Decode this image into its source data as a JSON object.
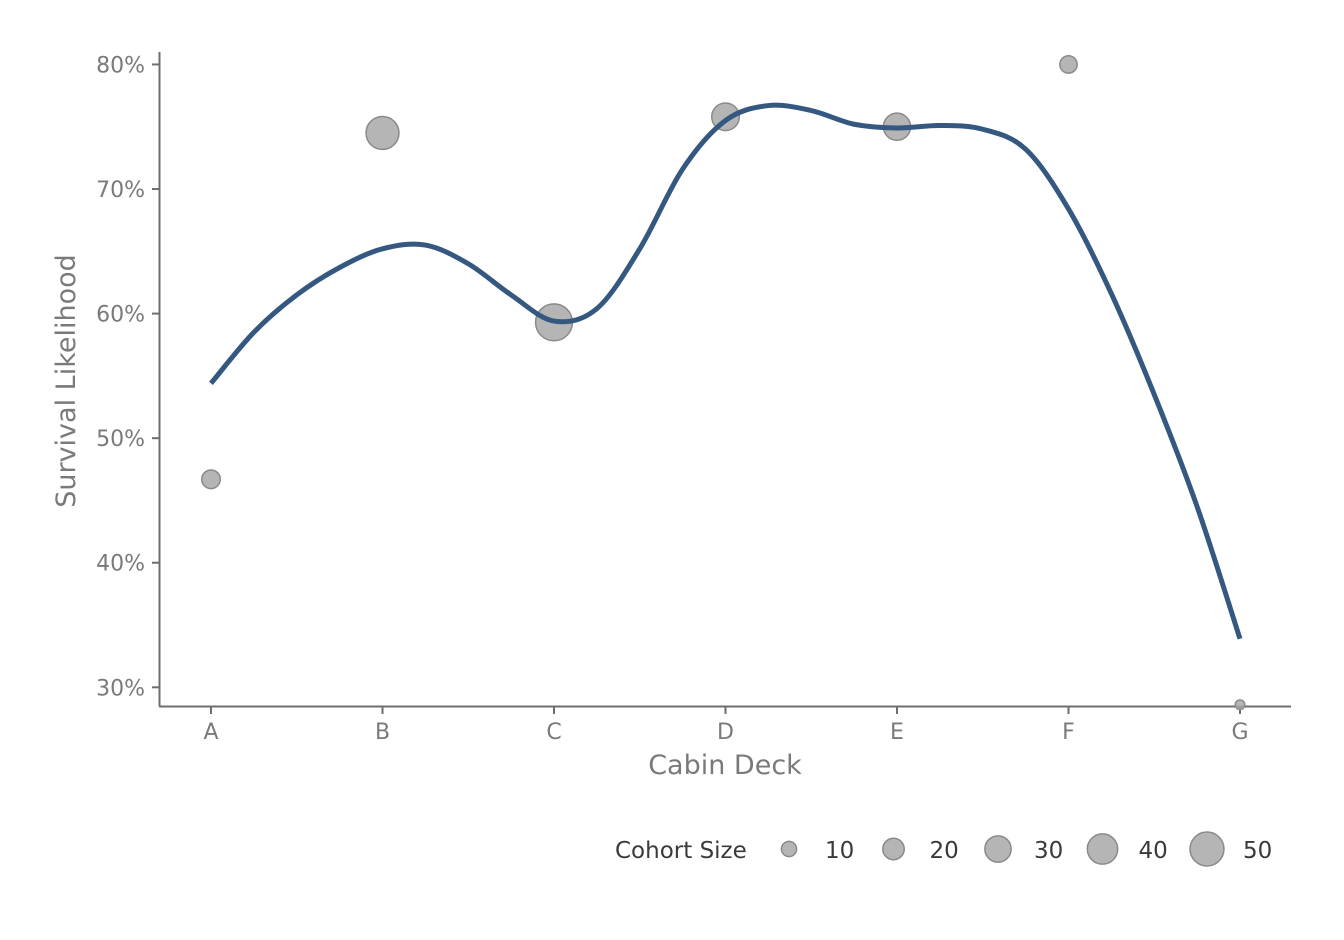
{
  "chart_data": {
    "type": "scatter",
    "title": "",
    "xlabel": "Cabin Deck",
    "ylabel": "Survival Likelihood",
    "categories": [
      "A",
      "B",
      "C",
      "D",
      "E",
      "F",
      "G"
    ],
    "ylim": [
      0.285,
      0.81
    ],
    "yticks": [
      0.3,
      0.4,
      0.5,
      0.6,
      0.7,
      0.8
    ],
    "ytick_labels": [
      "30%",
      "40%",
      "50%",
      "60%",
      "70%",
      "80%"
    ],
    "series": [
      {
        "values": [
          0.467,
          0.745,
          0.593,
          0.758,
          0.75,
          0.8,
          0.286
        ],
        "sizes": [
          15,
          47,
          59,
          33,
          32,
          13,
          4
        ],
        "color": "#a8a8a8"
      }
    ],
    "trend": {
      "type": "smooth",
      "color": "#34587f",
      "x": [
        0.0,
        0.25,
        0.5,
        0.75,
        1.0,
        1.25,
        1.5,
        1.75,
        2.0,
        2.25,
        2.5,
        2.75,
        3.0,
        3.25,
        3.5,
        3.75,
        4.0,
        4.25,
        4.5,
        4.75,
        5.0,
        5.25,
        5.5,
        5.75,
        6.0
      ],
      "y": [
        0.544,
        0.585,
        0.615,
        0.637,
        0.652,
        0.655,
        0.64,
        0.615,
        0.594,
        0.604,
        0.652,
        0.716,
        0.755,
        0.767,
        0.763,
        0.752,
        0.749,
        0.751,
        0.748,
        0.732,
        0.684,
        0.616,
        0.535,
        0.445,
        0.339
      ]
    },
    "grid": false,
    "legend": {
      "title": "Cohort Size",
      "position": "bottom",
      "items": [
        {
          "value": 10,
          "label": "10"
        },
        {
          "value": 20,
          "label": "20"
        },
        {
          "value": 30,
          "label": "30"
        },
        {
          "value": 40,
          "label": "40"
        },
        {
          "value": 50,
          "label": "50"
        }
      ]
    }
  }
}
